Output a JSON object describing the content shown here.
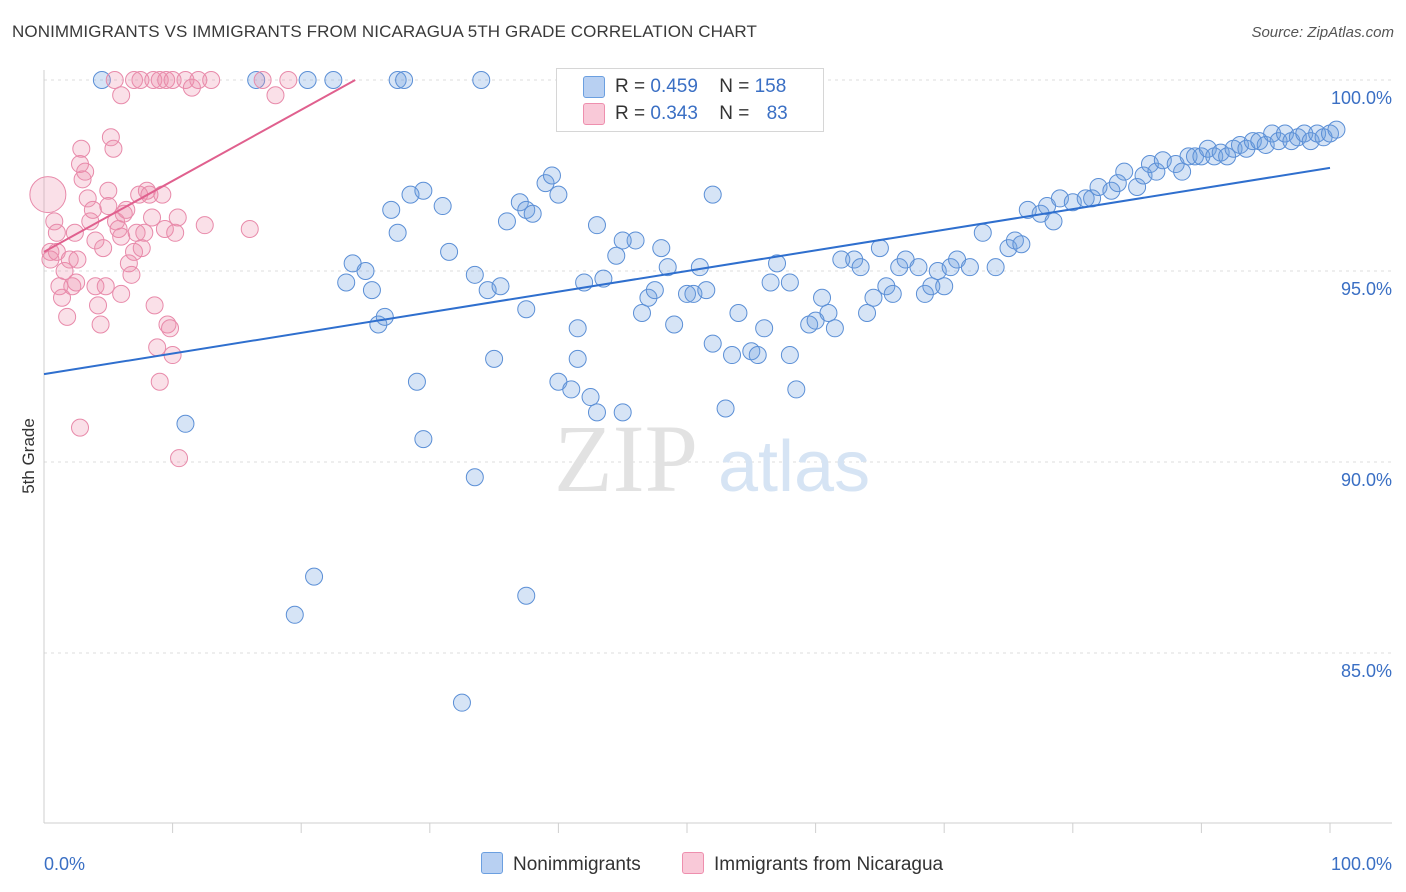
{
  "title": "NONIMMIGRANTS VS IMMIGRANTS FROM NICARAGUA 5TH GRADE CORRELATION CHART",
  "source": "Source: ZipAtlas.com",
  "watermark": {
    "zip": "ZIP",
    "atlas": "atlas"
  },
  "legend": {
    "blue": {
      "r_label": "R =",
      "r_value": "0.459",
      "n_label": "N =",
      "n_value": "158"
    },
    "pink": {
      "r_label": "R =",
      "r_value": "0.343",
      "n_label": "N =",
      "n_value": "83"
    }
  },
  "chart_data": {
    "type": "scatter",
    "title": "NONIMMIGRANTS VS IMMIGRANTS FROM NICARAGUA 5TH GRADE CORRELATION CHART",
    "ylabel": "5th Grade",
    "xlabel": "",
    "xlim": [
      0,
      100
    ],
    "ylim": [
      80.5,
      100.8
    ],
    "x_tick_labels": [
      "0.0%",
      "100.0%"
    ],
    "y_ticks": [
      100,
      95,
      90,
      85
    ],
    "y_tick_labels": [
      "100.0%",
      "95.0%",
      "90.0%",
      "85.0%"
    ],
    "grid": "horizontal dashed",
    "legend_position": "top-center and bottom",
    "colors": {
      "blue": "#6b9fe0",
      "blue_line": "#2f6fce",
      "pink": "#ee8fae",
      "pink_line": "#e0608e",
      "axis_label": "#3a6fc4"
    },
    "series": [
      {
        "name": "Nonimmigrants",
        "r": 0.459,
        "n": 158,
        "trend": {
          "x": [
            0,
            100
          ],
          "y": [
            92.3,
            97.7
          ]
        },
        "points": [
          [
            4.5,
            100
          ],
          [
            16.5,
            100
          ],
          [
            20.5,
            100
          ],
          [
            22.5,
            100
          ],
          [
            27.5,
            100
          ],
          [
            28,
            100
          ],
          [
            34,
            100
          ],
          [
            11,
            91
          ],
          [
            19.5,
            86
          ],
          [
            21,
            87
          ],
          [
            32.5,
            83.7
          ],
          [
            29.5,
            90.6
          ],
          [
            33.5,
            89.6
          ],
          [
            37.5,
            86.5
          ],
          [
            23.5,
            94.7
          ],
          [
            24,
            95.2
          ],
          [
            25.5,
            94.5
          ],
          [
            25,
            95
          ],
          [
            26,
            93.6
          ],
          [
            26.5,
            93.8
          ],
          [
            27.5,
            96
          ],
          [
            27,
            96.6
          ],
          [
            28.5,
            97
          ],
          [
            29.5,
            97.1
          ],
          [
            31,
            96.7
          ],
          [
            31.5,
            95.5
          ],
          [
            29,
            92.1
          ],
          [
            33.5,
            94.9
          ],
          [
            34.5,
            94.5
          ],
          [
            35.5,
            94.6
          ],
          [
            35,
            92.7
          ],
          [
            36,
            96.3
          ],
          [
            37,
            96.8
          ],
          [
            37.5,
            96.6
          ],
          [
            38,
            96.5
          ],
          [
            39,
            97.3
          ],
          [
            40,
            97
          ],
          [
            39.5,
            97.5
          ],
          [
            37.5,
            94
          ],
          [
            40,
            92.1
          ],
          [
            41,
            91.9
          ],
          [
            41.5,
            92.7
          ],
          [
            41.5,
            93.5
          ],
          [
            42,
            94.7
          ],
          [
            43,
            96.2
          ],
          [
            42.5,
            91.7
          ],
          [
            43,
            91.3
          ],
          [
            45,
            91.3
          ],
          [
            43.5,
            94.8
          ],
          [
            44.5,
            95.4
          ],
          [
            46,
            95.8
          ],
          [
            45,
            95.8
          ],
          [
            46.5,
            93.9
          ],
          [
            47,
            94.3
          ],
          [
            47.5,
            94.5
          ],
          [
            48,
            95.6
          ],
          [
            48.5,
            95.1
          ],
          [
            49,
            93.6
          ],
          [
            50,
            94.4
          ],
          [
            50.5,
            94.4
          ],
          [
            51,
            95.1
          ],
          [
            51.5,
            94.5
          ],
          [
            52,
            97
          ],
          [
            52,
            93.1
          ],
          [
            53,
            91.4
          ],
          [
            53.5,
            92.8
          ],
          [
            54,
            93.9
          ],
          [
            55,
            92.9
          ],
          [
            55.5,
            92.8
          ],
          [
            56,
            93.5
          ],
          [
            56.5,
            94.7
          ],
          [
            57,
            95.2
          ],
          [
            58,
            94.7
          ],
          [
            58,
            92.8
          ],
          [
            58.5,
            91.9
          ],
          [
            59.5,
            93.6
          ],
          [
            60,
            93.7
          ],
          [
            60.5,
            94.3
          ],
          [
            61,
            93.9
          ],
          [
            61.5,
            93.5
          ],
          [
            62,
            95.3
          ],
          [
            63,
            95.3
          ],
          [
            63.5,
            95.1
          ],
          [
            64,
            93.9
          ],
          [
            64.5,
            94.3
          ],
          [
            65,
            95.6
          ],
          [
            65.5,
            94.6
          ],
          [
            66,
            94.4
          ],
          [
            66.5,
            95.1
          ],
          [
            67,
            95.3
          ],
          [
            68,
            95.1
          ],
          [
            68.5,
            94.4
          ],
          [
            69,
            94.6
          ],
          [
            69.5,
            95
          ],
          [
            70,
            94.6
          ],
          [
            70.5,
            95.1
          ],
          [
            71,
            95.3
          ],
          [
            72,
            95.1
          ],
          [
            73,
            96
          ],
          [
            74,
            95.1
          ],
          [
            75,
            95.6
          ],
          [
            75.5,
            95.8
          ],
          [
            76,
            95.7
          ],
          [
            76.5,
            96.6
          ],
          [
            77.5,
            96.5
          ],
          [
            78,
            96.7
          ],
          [
            78.5,
            96.3
          ],
          [
            79,
            96.9
          ],
          [
            80,
            96.8
          ],
          [
            81,
            96.9
          ],
          [
            81.5,
            96.9
          ],
          [
            82,
            97.2
          ],
          [
            83,
            97.1
          ],
          [
            83.5,
            97.3
          ],
          [
            84,
            97.6
          ],
          [
            85,
            97.2
          ],
          [
            85.5,
            97.5
          ],
          [
            86,
            97.8
          ],
          [
            86.5,
            97.6
          ],
          [
            87,
            97.9
          ],
          [
            88,
            97.8
          ],
          [
            88.5,
            97.6
          ],
          [
            89,
            98
          ],
          [
            89.5,
            98
          ],
          [
            90,
            98
          ],
          [
            90.5,
            98.2
          ],
          [
            91,
            98
          ],
          [
            91.5,
            98.1
          ],
          [
            92,
            98
          ],
          [
            92.5,
            98.2
          ],
          [
            93,
            98.3
          ],
          [
            93.5,
            98.2
          ],
          [
            94,
            98.4
          ],
          [
            94.5,
            98.4
          ],
          [
            95,
            98.3
          ],
          [
            95.5,
            98.6
          ],
          [
            96,
            98.4
          ],
          [
            96.5,
            98.6
          ],
          [
            97,
            98.4
          ],
          [
            97.5,
            98.5
          ],
          [
            98,
            98.6
          ],
          [
            98.5,
            98.4
          ],
          [
            99,
            98.6
          ],
          [
            99.5,
            98.5
          ],
          [
            100,
            98.6
          ],
          [
            100.5,
            98.7
          ]
        ]
      },
      {
        "name": "Immigrants from Nicaragua",
        "r": 0.343,
        "n": 83,
        "trend": {
          "x": [
            0,
            24.2
          ],
          "y": [
            95.5,
            100
          ]
        },
        "points": [
          [
            0.3,
            97
          ],
          [
            0.5,
            95.5
          ],
          [
            0.5,
            95.3
          ],
          [
            0.8,
            96.3
          ],
          [
            1,
            96
          ],
          [
            1,
            95.5
          ],
          [
            1.2,
            94.6
          ],
          [
            1.4,
            94.3
          ],
          [
            1.6,
            95
          ],
          [
            1.8,
            93.8
          ],
          [
            2,
            95.3
          ],
          [
            2.2,
            94.6
          ],
          [
            2.4,
            96
          ],
          [
            2.5,
            94.7
          ],
          [
            2.6,
            95.3
          ],
          [
            2.8,
            97.8
          ],
          [
            2.9,
            98.2
          ],
          [
            3,
            97.4
          ],
          [
            3.2,
            97.6
          ],
          [
            3.4,
            96.9
          ],
          [
            3.6,
            96.3
          ],
          [
            3.8,
            96.6
          ],
          [
            4,
            95.8
          ],
          [
            4,
            94.6
          ],
          [
            4.2,
            94.1
          ],
          [
            4.4,
            93.6
          ],
          [
            4.6,
            95.6
          ],
          [
            4.8,
            94.6
          ],
          [
            5,
            97.1
          ],
          [
            5,
            96.7
          ],
          [
            5.2,
            98.5
          ],
          [
            5.4,
            98.2
          ],
          [
            5.6,
            96.3
          ],
          [
            5.8,
            96.1
          ],
          [
            6,
            95.9
          ],
          [
            6,
            94.4
          ],
          [
            6.2,
            96.5
          ],
          [
            6.4,
            96.6
          ],
          [
            6.6,
            95.2
          ],
          [
            6.8,
            94.9
          ],
          [
            7,
            95.5
          ],
          [
            7.2,
            96
          ],
          [
            7.4,
            97
          ],
          [
            7.6,
            95.6
          ],
          [
            7.8,
            96
          ],
          [
            8,
            97.1
          ],
          [
            8.2,
            97
          ],
          [
            8.4,
            96.4
          ],
          [
            8.6,
            94.1
          ],
          [
            8.8,
            93
          ],
          [
            9,
            92.1
          ],
          [
            9.2,
            97
          ],
          [
            9.4,
            96.1
          ],
          [
            9.6,
            93.6
          ],
          [
            9.8,
            93.5
          ],
          [
            10,
            92.8
          ],
          [
            10.2,
            96
          ],
          [
            10.4,
            96.4
          ],
          [
            11,
            100
          ],
          [
            5.5,
            100
          ],
          [
            6,
            99.6
          ],
          [
            7,
            100
          ],
          [
            7.5,
            100
          ],
          [
            8.5,
            100
          ],
          [
            9,
            100
          ],
          [
            9.5,
            100
          ],
          [
            10,
            100
          ],
          [
            11.5,
            99.8
          ],
          [
            12,
            100
          ],
          [
            13,
            100
          ],
          [
            17,
            100
          ],
          [
            18,
            99.6
          ],
          [
            19,
            100
          ],
          [
            2.8,
            90.9
          ],
          [
            10.5,
            90.1
          ],
          [
            12.5,
            96.2
          ],
          [
            16,
            96.1
          ]
        ]
      }
    ]
  },
  "bottom_legend": {
    "blue": "Nonimmigrants",
    "pink": "Immigrants from Nicaragua"
  }
}
